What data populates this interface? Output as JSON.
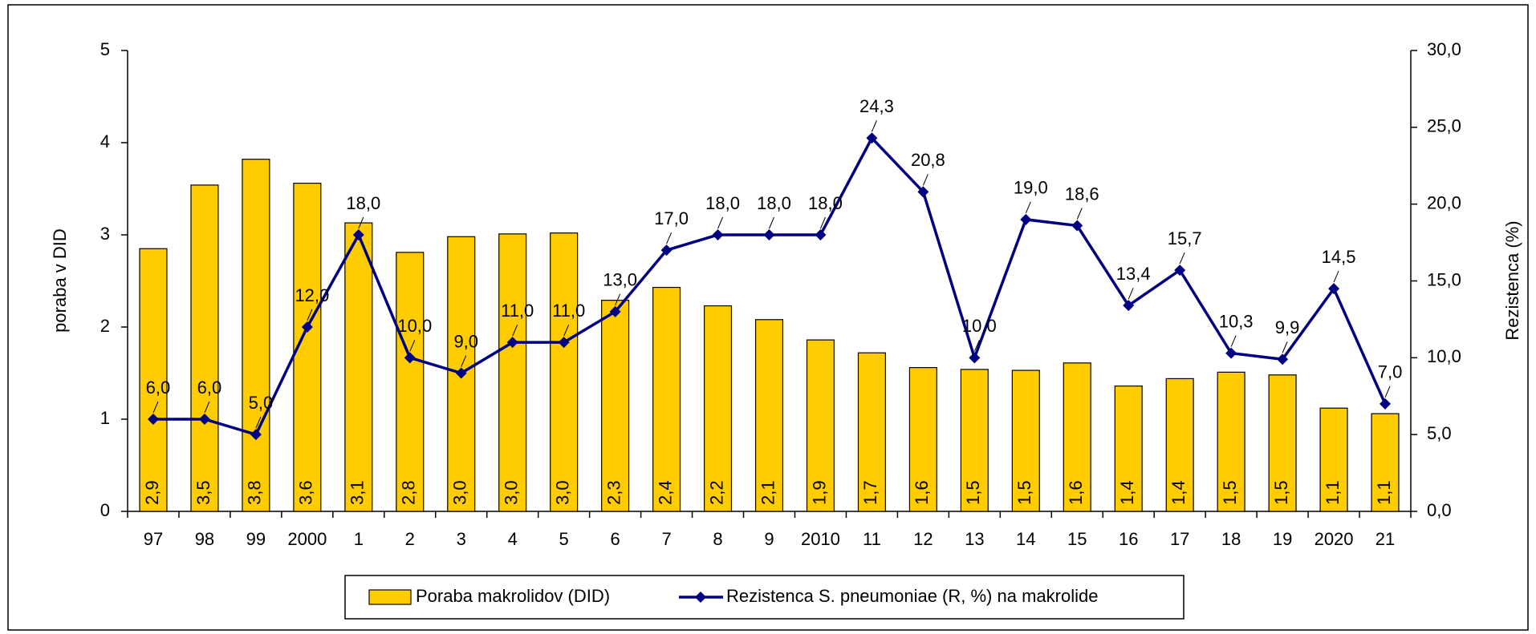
{
  "chart_data": {
    "type": "bar",
    "categories": [
      "97",
      "98",
      "99",
      "2000",
      "1",
      "2",
      "3",
      "4",
      "5",
      "6",
      "7",
      "8",
      "9",
      "2010",
      "11",
      "12",
      "13",
      "14",
      "15",
      "16",
      "17",
      "18",
      "19",
      "2020",
      "21"
    ],
    "ylabel": "poraba v DID",
    "y2label": "Rezistenca (%)",
    "ylim": [
      0,
      5
    ],
    "yticks": [
      0,
      1,
      2,
      3,
      4,
      5
    ],
    "y2lim": [
      0,
      30
    ],
    "y2ticks": [
      {
        "value": 0,
        "label": "0,0"
      },
      {
        "value": 5,
        "label": "5,0"
      },
      {
        "value": 10,
        "label": "10,0"
      },
      {
        "value": 15,
        "label": "15,0"
      },
      {
        "value": 20,
        "label": "20,0"
      },
      {
        "value": 25,
        "label": "25,0"
      },
      {
        "value": 30,
        "label": "30,0"
      }
    ],
    "grid": false,
    "legend": "bottom",
    "series": [
      {
        "name": "Poraba makrolidov (DID)",
        "type": "bar",
        "color": "#FFCC00",
        "values": [
          2.85,
          3.54,
          3.82,
          3.56,
          3.13,
          2.81,
          2.98,
          3.01,
          3.02,
          2.29,
          2.43,
          2.23,
          2.08,
          1.86,
          1.72,
          1.56,
          1.54,
          1.53,
          1.61,
          1.36,
          1.44,
          1.51,
          1.48,
          1.12,
          1.06
        ],
        "value_labels": [
          "2,9",
          "3,5",
          "3,8",
          "3,6",
          "3,1",
          "2,8",
          "3,0",
          "3,0",
          "3,0",
          "2,3",
          "2,4",
          "2,2",
          "2,1",
          "1,9",
          "1,7",
          "1,6",
          "1,5",
          "1,5",
          "1,6",
          "1,4",
          "1,4",
          "1,5",
          "1,5",
          "1,1",
          "1,1"
        ]
      },
      {
        "name": "Rezistenca S. pneumoniae (R, %) na makrolide",
        "type": "line",
        "axis": "y2",
        "color": "#000080",
        "values": [
          6,
          6,
          5,
          12,
          18,
          10,
          9,
          11,
          11,
          13,
          17,
          18,
          18,
          18,
          24.3,
          20.8,
          10,
          19,
          18.6,
          13.4,
          15.7,
          10.3,
          9.9,
          14.5,
          7.0
        ],
        "value_labels": [
          "6,0",
          "6,0",
          "5,0",
          "12,0",
          "18,0",
          "10,0",
          "9,0",
          "11,0",
          "11,0",
          "13,0",
          "17,0",
          "18,0",
          "18,0",
          "18,0",
          "24,3",
          "20,8",
          "10,0",
          "19,0",
          "18,6",
          "13,4",
          "15,7",
          "10,3",
          "9,9",
          "14,5",
          "7,0"
        ]
      }
    ]
  }
}
